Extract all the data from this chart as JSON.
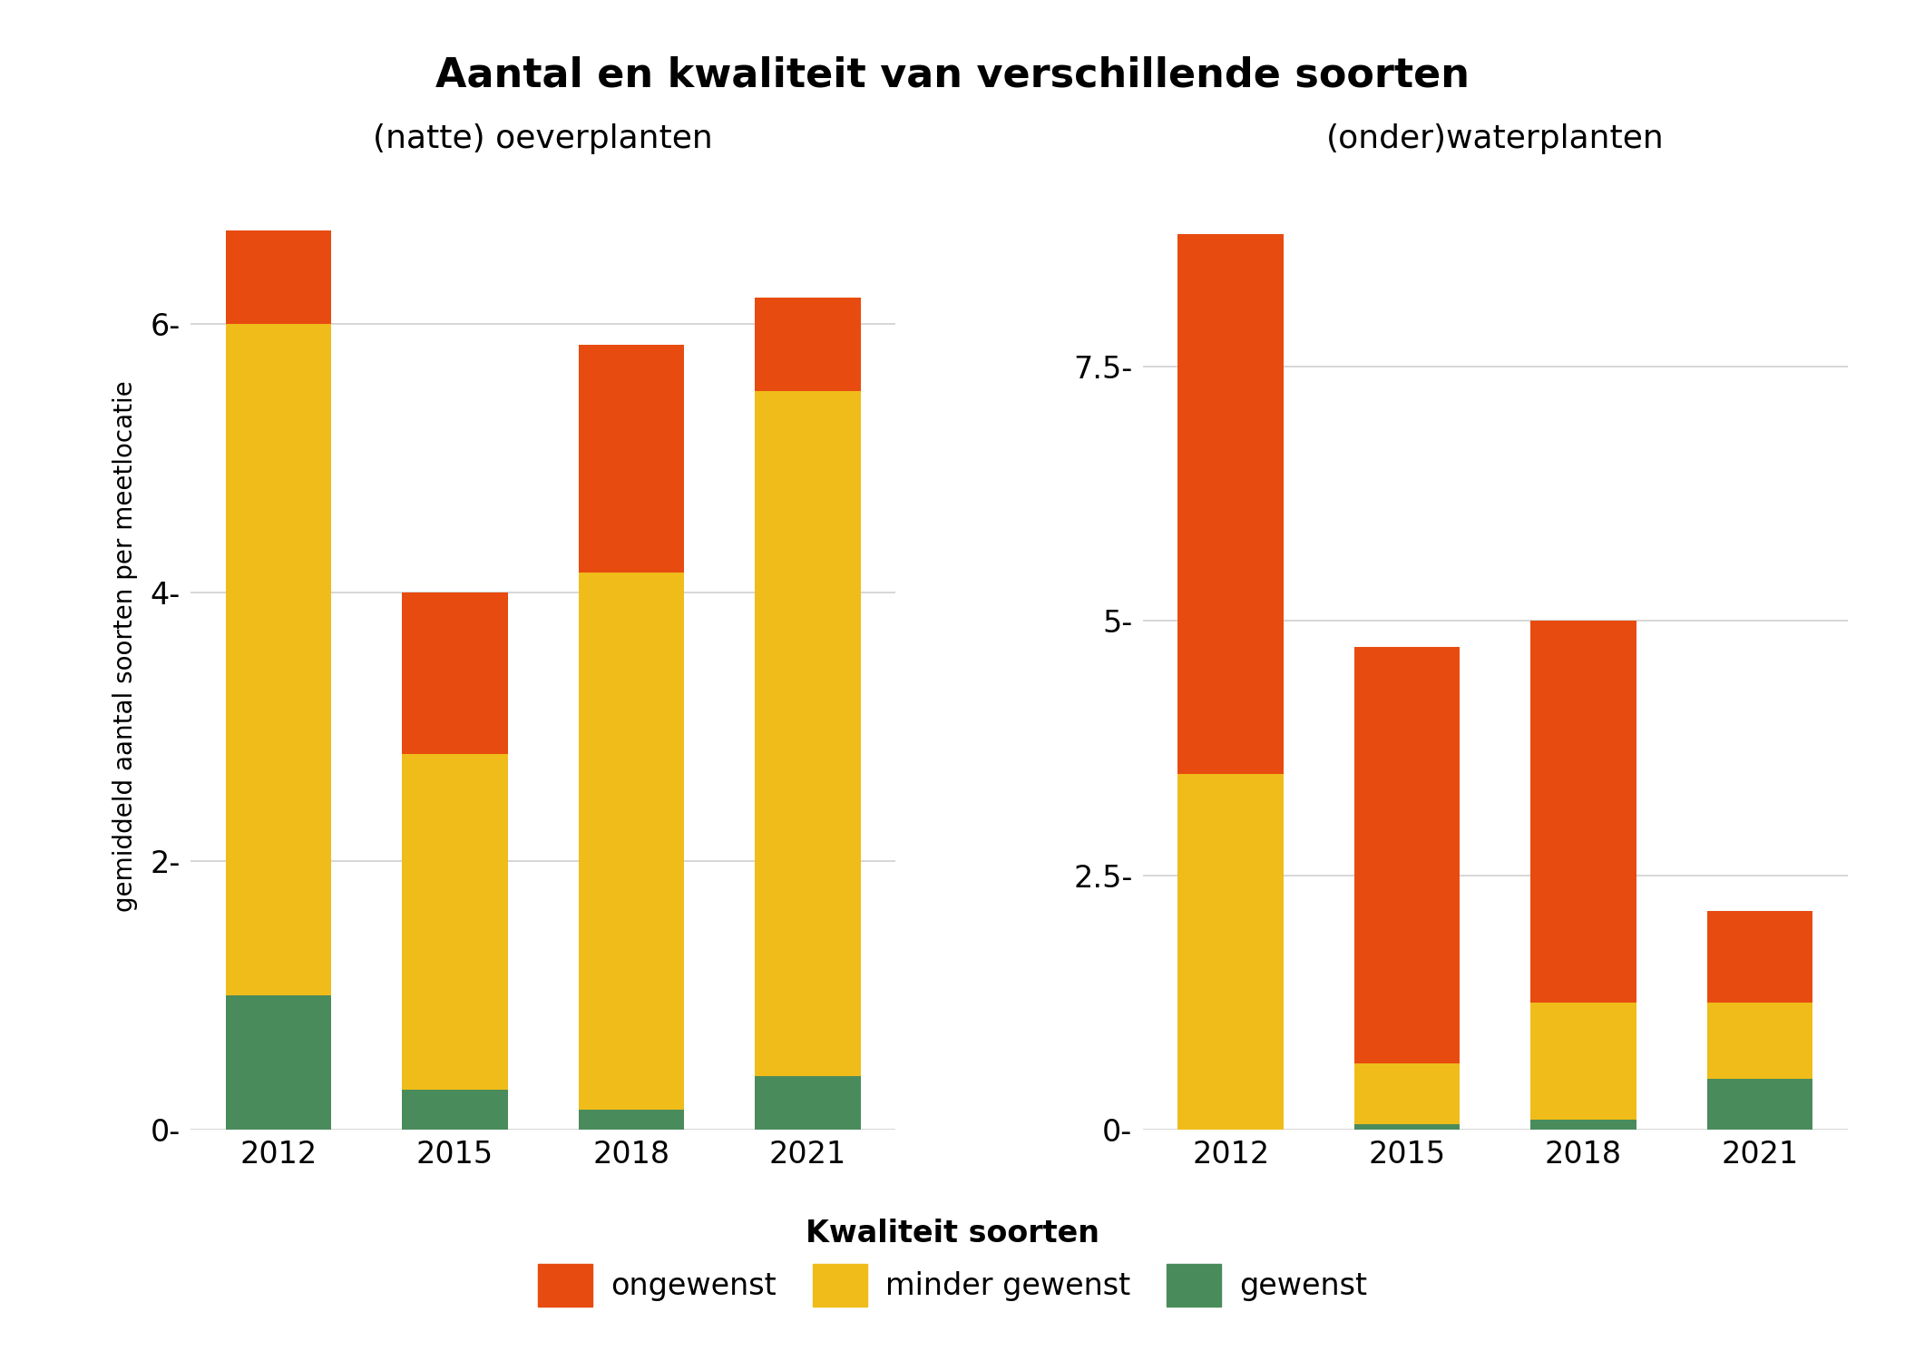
{
  "title": "Aantal en kwaliteit van verschillende soorten",
  "subtitle_left": "(natte) oeverplanten",
  "subtitle_right": "(onder)waterplanten",
  "ylabel": "gemiddeld aantal soorten per meetlocatie",
  "legend_title": "Kwaliteit soorten",
  "legend_labels": [
    "ongewenst",
    "minder gewenst",
    "gewenst"
  ],
  "colors": {
    "ongewenst": "#E84B10",
    "minder_gewenst": "#EFBC1A",
    "gewenst": "#4A8B5C"
  },
  "years": [
    2012,
    2015,
    2018,
    2021
  ],
  "left": {
    "gewenst": [
      1.0,
      0.3,
      0.15,
      0.4
    ],
    "minder_gewenst": [
      5.0,
      2.5,
      4.0,
      5.1
    ],
    "ongewenst": [
      0.7,
      1.2,
      1.7,
      0.7
    ]
  },
  "right": {
    "gewenst": [
      0.0,
      0.05,
      0.1,
      0.5
    ],
    "minder_gewenst": [
      3.5,
      0.6,
      1.15,
      0.75
    ],
    "ongewenst": [
      5.3,
      4.1,
      3.75,
      0.9
    ]
  },
  "left_yticks": [
    0,
    2,
    4,
    6
  ],
  "left_ylim": 7.2,
  "right_yticks": [
    0.0,
    2.5,
    5.0,
    7.5
  ],
  "right_ylim": 9.5,
  "background_color": "#FFFFFF",
  "grid_color": "#D0D0D0"
}
